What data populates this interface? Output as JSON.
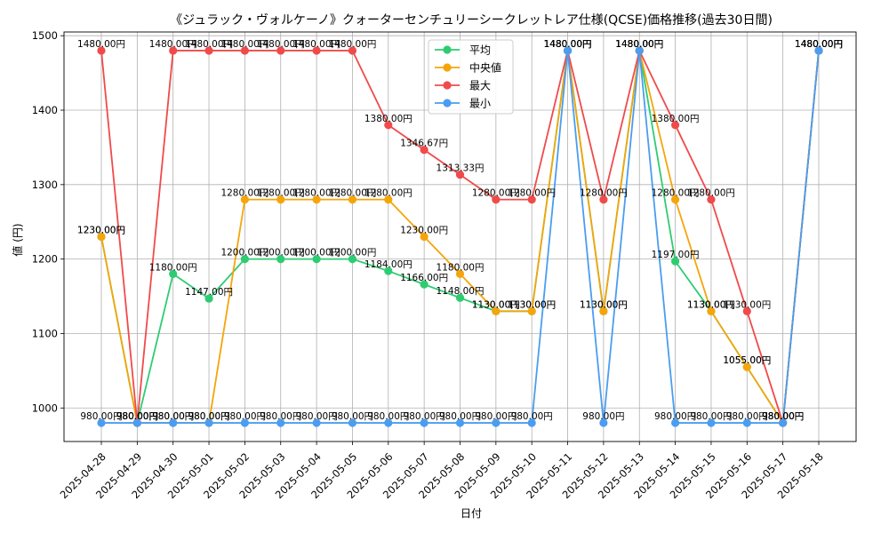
{
  "chart_data": {
    "type": "line",
    "title": "《ジュラック・ヴォルケーノ》クォーターセンチュリーシークレットレア仕様(QCSE)価格推移(過去30日間)",
    "xlabel": "日付",
    "ylabel": "値 (円)",
    "ylim": [
      955,
      1505
    ],
    "yticks": [
      1000,
      1100,
      1200,
      1300,
      1400,
      1500
    ],
    "grid": true,
    "legend_position": "top-center",
    "label_suffix": "円",
    "categories": [
      "2025-04-28",
      "2025-04-29",
      "2025-04-30",
      "2025-05-01",
      "2025-05-02",
      "2025-05-03",
      "2025-05-04",
      "2025-05-05",
      "2025-05-06",
      "2025-05-07",
      "2025-05-08",
      "2025-05-09",
      "2025-05-10",
      "2025-05-11",
      "2025-05-12",
      "2025-05-13",
      "2025-05-14",
      "2025-05-15",
      "2025-05-16",
      "2025-05-17",
      "2025-05-18"
    ],
    "series": [
      {
        "name": "平均",
        "color": "#2ecc71",
        "values": [
          1230,
          980,
          1180,
          1147,
          1200,
          1200,
          1200,
          1200,
          1184,
          1166,
          1148,
          1130,
          1130,
          1480,
          1130,
          1480,
          1197,
          1130,
          1055,
          980,
          1480
        ]
      },
      {
        "name": "中央値",
        "color": "#f5a50a",
        "values": [
          1230,
          980,
          980,
          980,
          1280,
          1280,
          1280,
          1280,
          1280,
          1230,
          1180,
          1130,
          1130,
          1480,
          1130,
          1480,
          1280,
          1130,
          1055,
          980,
          1480
        ]
      },
      {
        "name": "最大",
        "color": "#f04a4a",
        "values": [
          1480,
          980,
          1480,
          1480,
          1480,
          1480,
          1480,
          1480,
          1380,
          1346.67,
          1313.33,
          1280,
          1280,
          1480,
          1280,
          1480,
          1380,
          1280,
          1130,
          980,
          1480
        ]
      },
      {
        "name": "最小",
        "color": "#4a9df0",
        "values": [
          980,
          980,
          980,
          980,
          980,
          980,
          980,
          980,
          980,
          980,
          980,
          980,
          980,
          1480,
          980,
          1480,
          980,
          980,
          980,
          980,
          1480
        ]
      }
    ]
  }
}
